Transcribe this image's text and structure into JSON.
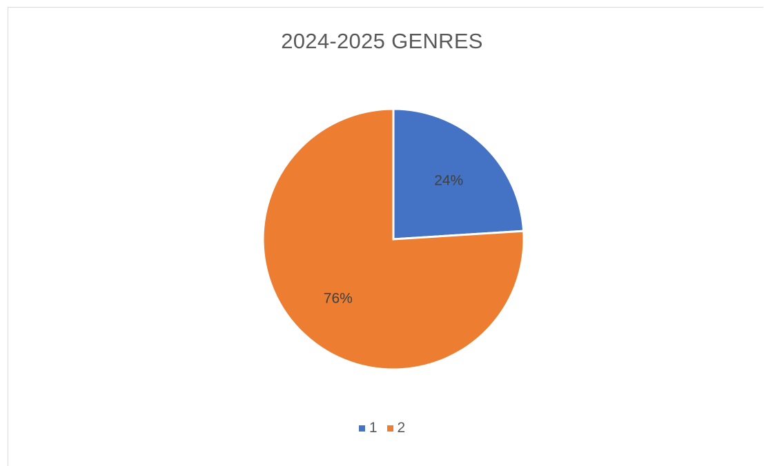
{
  "chart_data": {
    "type": "pie",
    "title": "2024-2025 GENRES",
    "categories": [
      "1",
      "2"
    ],
    "values": [
      24,
      76
    ],
    "data_labels": [
      "24%",
      "76%"
    ],
    "colors": [
      "#4472c4",
      "#ed7d31"
    ],
    "legend_position": "bottom"
  }
}
